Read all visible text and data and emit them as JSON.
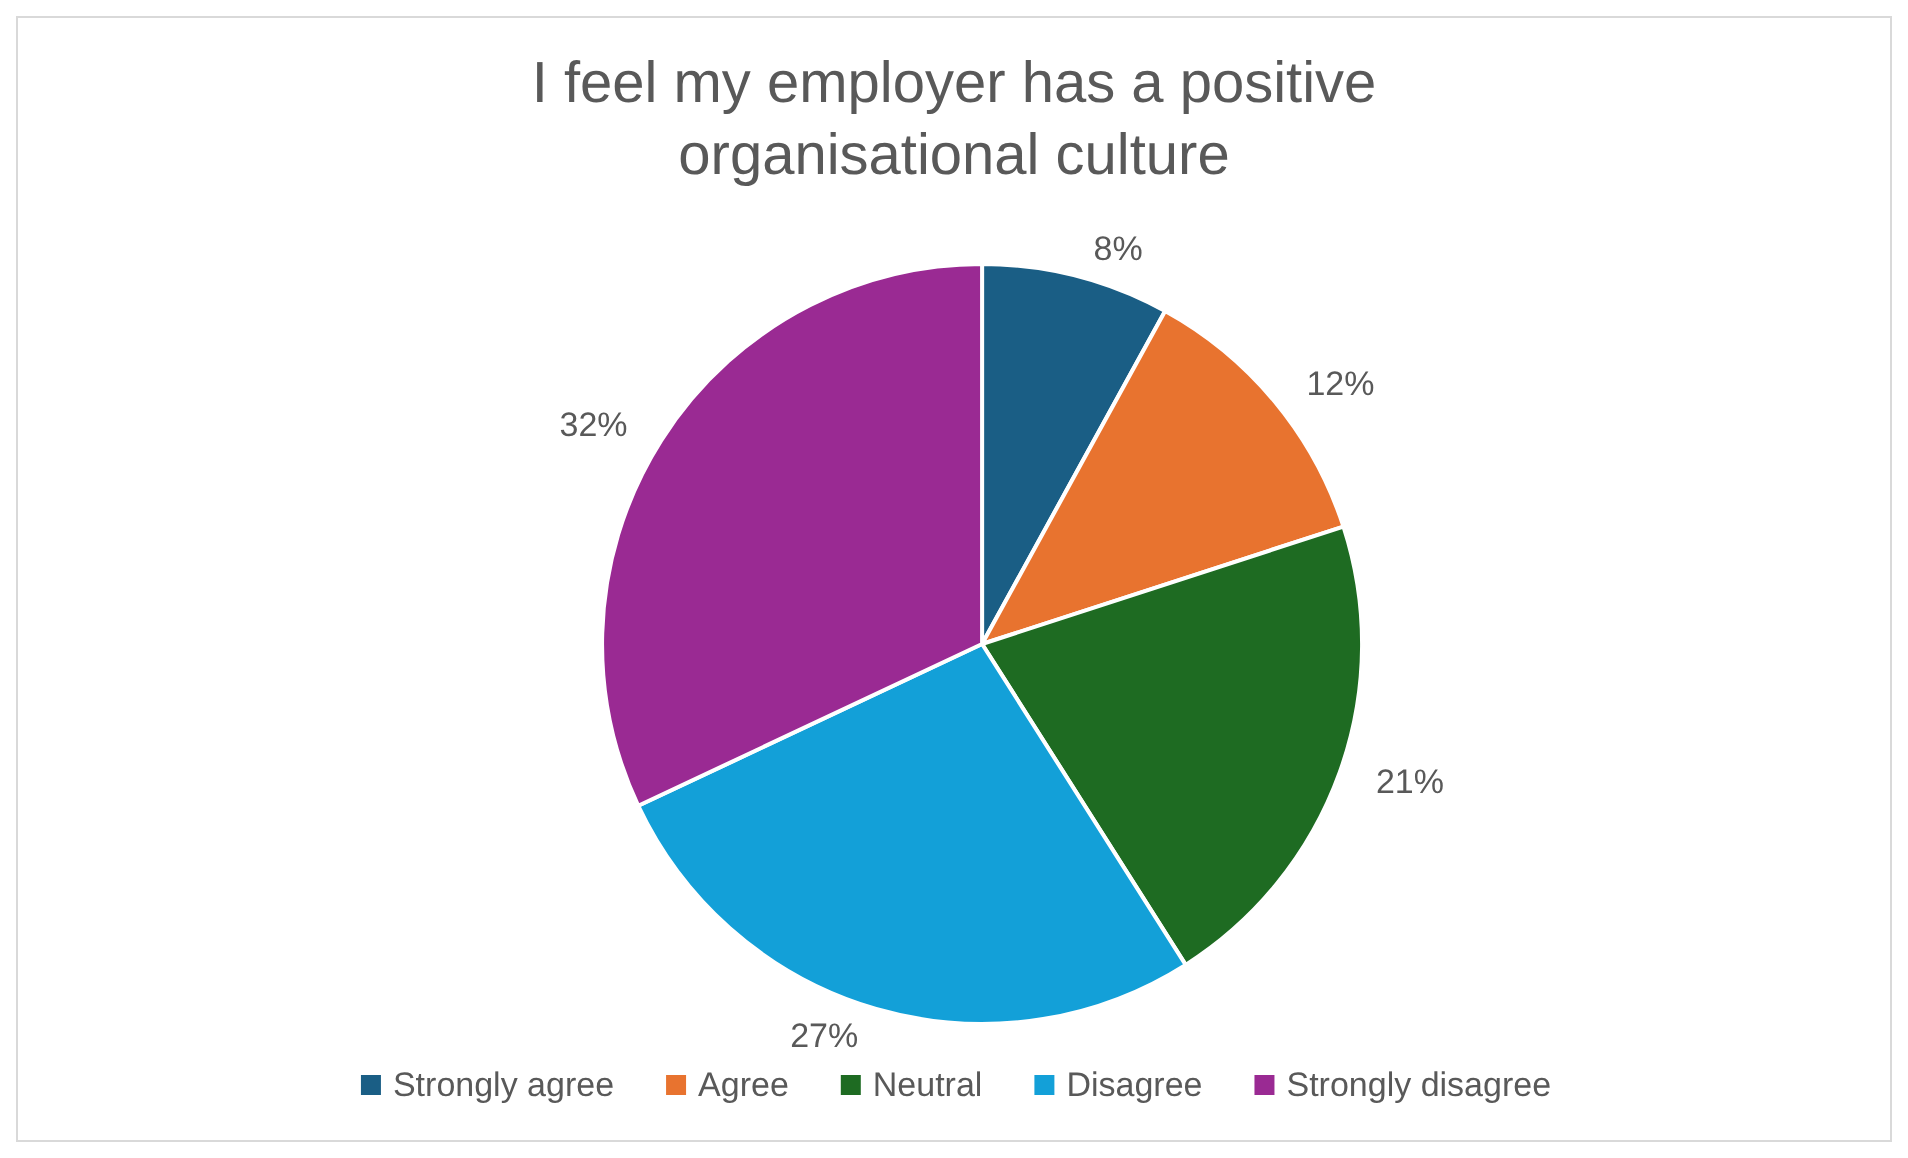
{
  "chart_data": {
    "type": "pie",
    "title": "I feel my employer has a positive\norganisational culture",
    "categories": [
      "Strongly agree",
      "Agree",
      "Neutral",
      "Disagree",
      "Strongly disagree"
    ],
    "values": [
      8,
      12,
      21,
      27,
      32
    ],
    "value_labels": [
      "8%",
      "12%",
      "21%",
      "27%",
      "32%"
    ],
    "colors": [
      "#1a5e85",
      "#e8732f",
      "#1e6b22",
      "#13a0d8",
      "#9a2a93"
    ],
    "legend": "bottom"
  }
}
